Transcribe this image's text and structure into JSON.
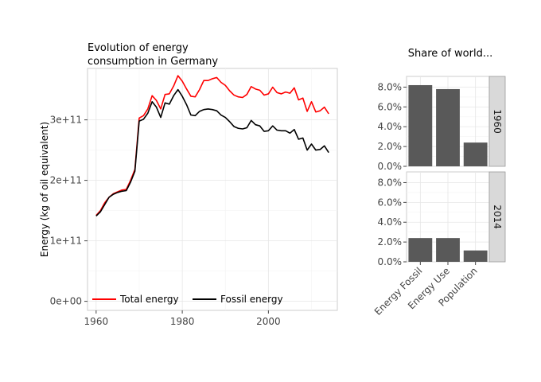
{
  "chart_data": [
    {
      "type": "line",
      "title_lines": [
        "Evolution of energy",
        "consumption in Germany"
      ],
      "xlabel": "",
      "ylabel": "Energy (kg of oil equivalent)",
      "xlim": [
        1958,
        2016
      ],
      "ylim": [
        -15000000000,
        385000000000
      ],
      "x_ticks": [
        1960,
        1980,
        2000
      ],
      "y_ticks": [
        0,
        100000000000,
        200000000000,
        300000000000
      ],
      "y_tick_labels": [
        "0e+00",
        "1e+11",
        "2e+11",
        "3e+11"
      ],
      "grid": true,
      "legend_position": "bottom-left",
      "x": [
        1960,
        1961,
        1962,
        1963,
        1964,
        1965,
        1966,
        1967,
        1968,
        1969,
        1970,
        1971,
        1972,
        1973,
        1974,
        1975,
        1976,
        1977,
        1978,
        1979,
        1980,
        1981,
        1982,
        1983,
        1984,
        1985,
        1986,
        1987,
        1988,
        1989,
        1990,
        1991,
        1992,
        1993,
        1994,
        1995,
        1996,
        1997,
        1998,
        1999,
        2000,
        2001,
        2002,
        2003,
        2004,
        2005,
        2006,
        2007,
        2008,
        2009,
        2010,
        2011,
        2012,
        2013,
        2014
      ],
      "series": [
        {
          "name": "Total energy",
          "color": "#ff0000",
          "values": [
            142000000000.0,
            150000000000.0,
            163000000000.0,
            172000000000.0,
            178000000000.0,
            181000000000.0,
            184000000000.0,
            185000000000.0,
            200000000000.0,
            218000000000.0,
            303000000000.0,
            307000000000.0,
            318000000000.0,
            340000000000.0,
            332000000000.0,
            318000000000.0,
            342000000000.0,
            343000000000.0,
            356000000000.0,
            373000000000.0,
            364000000000.0,
            351000000000.0,
            339000000000.0,
            338000000000.0,
            350000000000.0,
            365000000000.0,
            365000000000.0,
            368000000000.0,
            370000000000.0,
            362000000000.0,
            357000000000.0,
            348000000000.0,
            341000000000.0,
            338000000000.0,
            337000000000.0,
            342000000000.0,
            355000000000.0,
            351000000000.0,
            349000000000.0,
            341000000000.0,
            343000000000.0,
            354000000000.0,
            345000000000.0,
            343000000000.0,
            346000000000.0,
            344000000000.0,
            353000000000.0,
            333000000000.0,
            336000000000.0,
            314000000000.0,
            330000000000.0,
            313000000000.0,
            315000000000.0,
            321000000000.0,
            310000000000.0
          ]
        },
        {
          "name": "Fossil energy",
          "color": "#000000",
          "values": [
            141000000000.0,
            148000000000.0,
            160000000000.0,
            172000000000.0,
            177000000000.0,
            180000000000.0,
            182000000000.0,
            183000000000.0,
            197000000000.0,
            215000000000.0,
            298000000000.0,
            301000000000.0,
            311000000000.0,
            330000000000.0,
            321000000000.0,
            304000000000.0,
            328000000000.0,
            326000000000.0,
            340000000000.0,
            350000000000.0,
            339000000000.0,
            325000000000.0,
            308000000000.0,
            307000000000.0,
            314000000000.0,
            317000000000.0,
            318000000000.0,
            317000000000.0,
            315000000000.0,
            308000000000.0,
            304000000000.0,
            297000000000.0,
            289000000000.0,
            286000000000.0,
            285000000000.0,
            287000000000.0,
            299000000000.0,
            292000000000.0,
            290000000000.0,
            281000000000.0,
            282000000000.0,
            290000000000.0,
            283000000000.0,
            282000000000.0,
            282000000000.0,
            278000000000.0,
            284000000000.0,
            268000000000.0,
            270000000000.0,
            250000000000.0,
            260000000000.0,
            250000000000.0,
            251000000000.0,
            257000000000.0,
            246000000000.0
          ]
        }
      ]
    },
    {
      "type": "bar",
      "title": "Share of world...",
      "categories": [
        "Energy Fossil",
        "Energy Use",
        "Population"
      ],
      "ylim": [
        0,
        0.086
      ],
      "y_ticks": [
        0,
        0.02,
        0.04,
        0.06,
        0.08
      ],
      "y_tick_labels": [
        "0.0%",
        "2.0%",
        "4.0%",
        "6.0%",
        "8.0%"
      ],
      "bar_color": "#595959",
      "grid": true,
      "facets": [
        {
          "label": "1960",
          "values": [
            0.082,
            0.078,
            0.024
          ]
        },
        {
          "label": "2014",
          "values": [
            0.024,
            0.024,
            0.0115
          ]
        }
      ]
    }
  ]
}
